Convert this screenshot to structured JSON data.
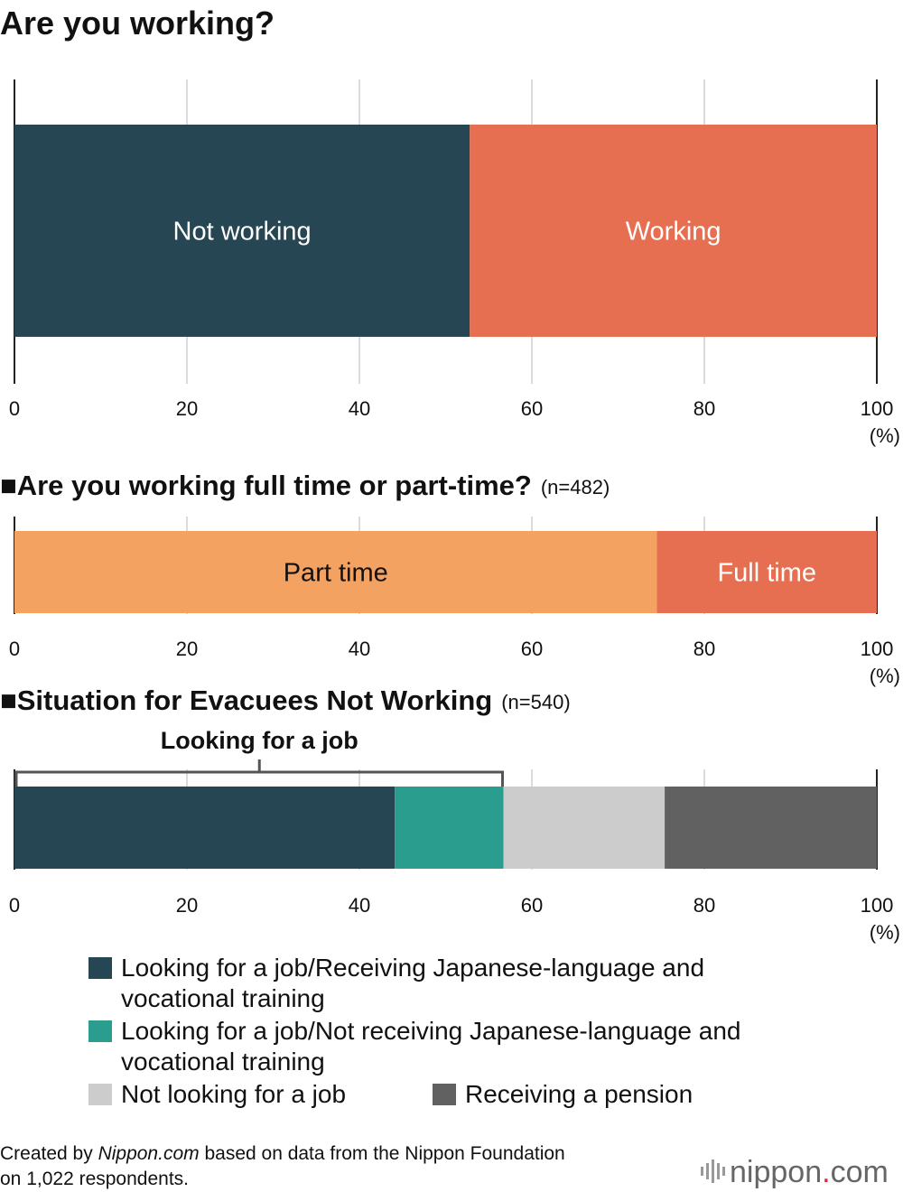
{
  "chart_data": [
    {
      "type": "bar",
      "orientation": "horizontal-stacked-100",
      "title": "Are you working?",
      "n_label": "",
      "series": [
        {
          "name": "Not working",
          "value": 52.8,
          "color": "#264653"
        },
        {
          "name": "Working",
          "value": 47.2,
          "color": "#e76f51"
        }
      ],
      "xlim": [
        0,
        100
      ],
      "ticks": [
        "0",
        "20",
        "40",
        "60",
        "80",
        "100"
      ],
      "unit": "(%)",
      "grid": true
    },
    {
      "type": "bar",
      "orientation": "horizontal-stacked-100",
      "title": "■Are you working full time or part-time?",
      "n_label": "(n=482)",
      "series": [
        {
          "name": "Part time",
          "value": 74.5,
          "color": "#f4a261"
        },
        {
          "name": "Full time",
          "value": 25.5,
          "color": "#e76f51"
        }
      ],
      "xlim": [
        0,
        100
      ],
      "ticks": [
        "0",
        "20",
        "40",
        "60",
        "80",
        "100"
      ],
      "unit": "(%)",
      "grid": true
    },
    {
      "type": "bar",
      "orientation": "horizontal-stacked-100",
      "title": "■Situation for Evacuees Not Working",
      "n_label": "(n=540)",
      "bracket_label": "Looking for a job",
      "series": [
        {
          "name": "Looking for a job/Receiving Japanese-language and vocational training",
          "value": 44.1,
          "color": "#264653"
        },
        {
          "name": "Looking for a job/Not receiving Japanese-language and vocational training",
          "value": 12.6,
          "color": "#2a9d8f"
        },
        {
          "name": "Not looking for a job",
          "value": 18.7,
          "color": "#cccccc"
        },
        {
          "name": "Receiving a pension",
          "value": 24.6,
          "color": "#616161"
        }
      ],
      "xlim": [
        0,
        100
      ],
      "ticks": [
        "0",
        "20",
        "40",
        "60",
        "80",
        "100"
      ],
      "unit": "(%)",
      "grid": true
    }
  ],
  "legend": {
    "items": [
      {
        "lines": [
          "Looking for a job/Receiving Japanese-language and",
          "vocational training"
        ],
        "color": "#264653"
      },
      {
        "lines": [
          "Looking for a job/Not receiving Japanese-language and",
          "vocational training"
        ],
        "color": "#2a9d8f"
      },
      {
        "lines": [
          "Not looking for a job"
        ],
        "color": "#cccccc"
      },
      {
        "lines": [
          "Receiving a pension"
        ],
        "color": "#616161"
      }
    ]
  },
  "footer": {
    "line1_prefix": "Created by ",
    "line1_italic": "Nippon.com",
    "line1_suffix": " based on data from the Nippon Foundation",
    "line2": "on 1,022 respondents."
  },
  "logo": {
    "text_main": "nippon",
    "text_dot": ".",
    "text_tail": "com",
    "accent_color": "#d7263d"
  }
}
